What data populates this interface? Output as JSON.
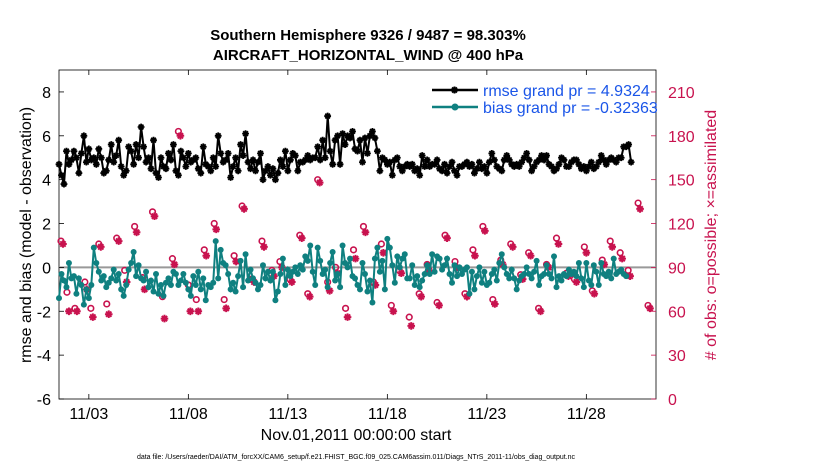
{
  "chart_data": {
    "type": "line",
    "title": "Southern Hemisphere 9326 / 9487 = 98.303%",
    "subtitle": "AIRCRAFT_HORIZONTAL_WIND @ 400 hPa",
    "xlabel": "Nov.01,2011 00:00:00 start",
    "ylabel": "rmse and bias (model - observation)",
    "ylabel_right": "# of obs: o=possible; ×=assimilated",
    "xlim": [
      1.5,
      31.5
    ],
    "ylim": [
      -6,
      9
    ],
    "ylim_right": [
      0,
      225
    ],
    "x_ticks": [
      3,
      8,
      13,
      18,
      23,
      28
    ],
    "x_tick_labels": [
      "11/03",
      "11/08",
      "11/13",
      "11/18",
      "11/23",
      "11/28"
    ],
    "y_ticks": [
      -6,
      -4,
      -2,
      0,
      2,
      4,
      6,
      8
    ],
    "y_ticks_right": [
      0,
      30,
      60,
      90,
      120,
      150,
      180,
      210
    ],
    "footnote": "data file: /Users/raeder/DAI/ATM_forcXX/CAM6_setup/f.e21.FHIST_BGC.f09_025.CAM6assim.011/Diags_NTrS_2011-11/obs_diag_output.nc",
    "series": [
      {
        "name": "rmse grand pr = 4.9324",
        "color": "#000000",
        "marker": "*",
        "axis": "left",
        "values": [
          4.7,
          4.2,
          3.8,
          5.3,
          4.7,
          4.9,
          5.3,
          5.0,
          4.3,
          5.2,
          6.0,
          4.8,
          5.4,
          4.9,
          5.0,
          4.7,
          5.4,
          5.0,
          4.3,
          4.4,
          4.9,
          5.6,
          4.8,
          5.1,
          5.8,
          4.6,
          4.2,
          4.4,
          5.5,
          5.3,
          4.7,
          5.6,
          5.0,
          6.4,
          5.5,
          4.8,
          5.0,
          4.5,
          5.8,
          4.3,
          4.1,
          5.0,
          4.6,
          4.5,
          5.2,
          4.9,
          5.6,
          4.4,
          4.2,
          5.3,
          5.0,
          4.6,
          5.2,
          4.8,
          4.9,
          5.0,
          4.5,
          4.3,
          5.5,
          4.7,
          4.6,
          4.4,
          5.0,
          4.6,
          6.0,
          5.2,
          4.8,
          4.9,
          5.2,
          4.1,
          4.6,
          5.0,
          4.4,
          5.6,
          5.1,
          6.1,
          4.8,
          4.5,
          4.9,
          4.4,
          4.8,
          5.2,
          4.0,
          4.4,
          4.6,
          4.2,
          4.5,
          4.0,
          4.3,
          4.9,
          4.6,
          5.3,
          4.4,
          4.9,
          5.2,
          5.1,
          4.4,
          4.8,
          4.8,
          4.9,
          5.1,
          4.9,
          5.0,
          5.0,
          5.5,
          4.9,
          5.8,
          5.0,
          6.9,
          5.3,
          4.7,
          5.8,
          6.0,
          4.7,
          6.1,
          5.6,
          6.0,
          5.9,
          6.2,
          5.4,
          5.3,
          5.8,
          4.8,
          5.9,
          5.2,
          6.0,
          6.2,
          5.9,
          5.3,
          4.4,
          5.0,
          4.9,
          4.7,
          4.8,
          4.2,
          4.9,
          5.0,
          4.6,
          4.4,
          4.6,
          4.7,
          4.6,
          4.7,
          4.4,
          4.5,
          4.2,
          5.1,
          4.6,
          4.9,
          4.6,
          4.7,
          4.7,
          4.9,
          4.5,
          4.4,
          4.7,
          4.3,
          4.6,
          4.8,
          4.4,
          4.2,
          4.6,
          4.6,
          4.7,
          4.8,
          4.6,
          4.7,
          4.3,
          4.5,
          4.8,
          4.5,
          4.6,
          4.3,
          4.8,
          5.2,
          4.9,
          4.6,
          4.5,
          4.4,
          4.9,
          5.1,
          4.9,
          4.7,
          4.6,
          4.7,
          4.6,
          4.8,
          5.0,
          5.2,
          4.9,
          4.4,
          4.6,
          4.8,
          4.9,
          5.1,
          4.9,
          5.1,
          4.7,
          4.6,
          4.4,
          4.5,
          4.7,
          5.0,
          4.9,
          4.6,
          4.6,
          4.8,
          4.9,
          4.9,
          4.7,
          4.5,
          4.6,
          4.4,
          4.6,
          4.8,
          4.5,
          4.6,
          4.8,
          5.1,
          4.9,
          4.7,
          4.9,
          5.0,
          4.9,
          4.8,
          5.0,
          5.0,
          5.5,
          5.5,
          5.6,
          4.8
        ],
        "x_start": 1.5,
        "x_step": 0.125
      },
      {
        "name": "bias grand pr = -0.32363",
        "color": "#0f8080",
        "marker": "o",
        "axis": "left",
        "values": [
          -1.4,
          -0.3,
          -0.6,
          -0.9,
          0.2,
          -0.5,
          -0.4,
          -1.2,
          -0.5,
          -0.8,
          -1.7,
          -1.0,
          -1.4,
          -0.8,
          0.9,
          0.2,
          -0.2,
          -0.6,
          -0.4,
          -0.9,
          -0.7,
          -0.5,
          -0.1,
          -0.6,
          -0.3,
          -1.0,
          -1.3,
          -0.8,
          -0.1,
          0.2,
          0.7,
          -0.4,
          0.1,
          -0.5,
          -0.6,
          -0.2,
          -0.9,
          -0.6,
          -1.1,
          -0.3,
          -1.2,
          -0.8,
          -1.3,
          -0.7,
          -0.5,
          -0.8,
          -0.2,
          -0.3,
          -0.8,
          -0.6,
          -0.3,
          -0.7,
          -1.0,
          -1.3,
          -0.4,
          -0.8,
          -0.2,
          -1.0,
          -0.5,
          -1.5,
          -0.8,
          -0.9,
          -0.7,
          1.2,
          -0.5,
          0.8,
          0.2,
          0.1,
          -0.3,
          -1.0,
          -0.7,
          -1.1,
          -0.4,
          0.3,
          -0.9,
          0.6,
          -0.6,
          -0.1,
          -0.5,
          -0.7,
          -1.0,
          -0.8,
          0.1,
          -0.5,
          -0.2,
          -0.6,
          -0.2,
          -1.5,
          -1.1,
          -0.3,
          0.4,
          -0.8,
          -0.1,
          -0.4,
          -0.2,
          0.0,
          -0.3,
          0.1,
          -0.1,
          0.5,
          0.3,
          1.0,
          -0.2,
          -0.8,
          0.9,
          0.3,
          -0.3,
          -0.1,
          -0.9,
          0.2,
          0.7,
          -0.6,
          -0.3,
          -0.9,
          1.0,
          0.2,
          0.0,
          0.4,
          -0.4,
          -0.5,
          -0.8,
          -1.0,
          0.2,
          -0.3,
          -1.1,
          -0.6,
          -1.6,
          0.4,
          0.9,
          -0.2,
          0.3,
          -1.0,
          1.3,
          0.9,
          0.1,
          -0.7,
          0.5,
          0.0,
          0.4,
          0.6,
          -0.5,
          -0.5,
          0.1,
          -0.8,
          -0.4,
          -0.9,
          -0.6,
          -0.3,
          0.1,
          -0.3,
          0.6,
          -0.2,
          0.5,
          0.4,
          -0.1,
          0.1,
          0.4,
          -0.3,
          -0.7,
          0.1,
          -0.4,
          0.0,
          -0.3,
          -0.1,
          0.0,
          -1.2,
          -0.2,
          -1.0,
          -0.4,
          0.0,
          -0.7,
          -0.2,
          -0.8,
          -0.7,
          -0.3,
          -0.1,
          -0.6,
          0.2,
          0.6,
          0.0,
          -0.3,
          -0.5,
          -0.1,
          -0.5,
          -1.0,
          -0.6,
          -0.4,
          -0.3,
          0.0,
          -0.3,
          -0.5,
          -0.2,
          0.3,
          -0.8,
          -0.4,
          -0.3,
          0.1,
          -0.3,
          -0.5,
          0.5,
          -0.9,
          -0.4,
          -0.6,
          -0.3,
          -0.4,
          -0.1,
          -0.3,
          -0.2,
          -0.4,
          0.2,
          -0.5,
          -0.9,
          0.2,
          -0.6,
          -0.8,
          0.1,
          -0.2,
          -0.8,
          0.2,
          -0.3,
          -0.4,
          -0.2,
          -0.5,
          0.4,
          -0.3,
          -0.2,
          -0.1,
          -0.3,
          -0.4
        ],
        "x_start": 1.5,
        "x_step": 0.125
      },
      {
        "name": "# of obs possible",
        "color": "#c8124e",
        "marker": "o",
        "axis": "right",
        "x": [
          1.6,
          1.9,
          2.3,
          2.8,
          3.1,
          3.5,
          3.9,
          4.4,
          4.8,
          5.3,
          5.7,
          6.2,
          6.7,
          7.2,
          7.5,
          8.0,
          8.4,
          8.8,
          9.3,
          9.8,
          10.3,
          10.7,
          11.2,
          11.7,
          12.2,
          12.6,
          13.1,
          13.6,
          14.0,
          14.5,
          15.0,
          15.4,
          15.9,
          16.3,
          16.8,
          17.3,
          17.7,
          18.2,
          18.6,
          19.1,
          19.6,
          20.0,
          20.5,
          20.9,
          21.4,
          21.9,
          22.3,
          22.8,
          23.3,
          23.7,
          24.2,
          24.7,
          25.1,
          25.6,
          26.0,
          26.5,
          27.0,
          27.4,
          27.9,
          28.3,
          28.8,
          29.2,
          29.7,
          30.1,
          30.6,
          31.1
        ],
        "values": [
          108,
          73,
          62,
          80,
          62,
          106,
          65,
          110,
          88,
          118,
          83,
          128,
          70,
          96,
          183,
          78,
          68,
          102,
          120,
          68,
          98,
          132,
          82,
          108,
          88,
          94,
          82,
          112,
          72,
          150,
          80,
          90,
          62,
          102,
          118,
          80,
          106,
          64,
          88,
          56,
          72,
          92,
          66,
          112,
          94,
          72,
          102,
          118,
          68,
          95,
          106,
          85,
          100,
          62,
          92,
          110,
          86,
          82,
          104,
          74,
          95,
          108,
          100,
          88,
          134,
          64
        ]
      },
      {
        "name": "# of obs assimilated",
        "color": "#c8124e",
        "marker": "*",
        "axis": "right",
        "x": [
          1.7,
          2.0,
          2.4,
          2.9,
          3.2,
          3.6,
          4.0,
          4.5,
          4.9,
          5.4,
          5.8,
          6.3,
          6.8,
          7.3,
          7.6,
          8.1,
          8.5,
          8.9,
          9.4,
          9.9,
          10.4,
          10.8,
          11.3,
          11.8,
          12.3,
          12.7,
          13.2,
          13.7,
          14.1,
          14.6,
          15.1,
          15.5,
          16.0,
          16.4,
          16.9,
          17.4,
          17.8,
          18.3,
          18.7,
          19.2,
          19.7,
          20.1,
          20.6,
          21.0,
          21.5,
          22.0,
          22.4,
          22.9,
          23.4,
          23.8,
          24.3,
          24.8,
          25.2,
          25.7,
          26.1,
          26.6,
          27.1,
          27.5,
          28.0,
          28.4,
          28.9,
          29.3,
          29.8,
          30.2,
          30.7,
          31.2
        ],
        "values": [
          106,
          60,
          60,
          75,
          56,
          104,
          58,
          108,
          80,
          114,
          75,
          125,
          55,
          92,
          180,
          60,
          60,
          98,
          116,
          62,
          94,
          130,
          80,
          104,
          84,
          90,
          80,
          110,
          70,
          148,
          74,
          86,
          56,
          96,
          114,
          78,
          100,
          60,
          86,
          50,
          70,
          88,
          64,
          110,
          90,
          70,
          98,
          115,
          65,
          92,
          104,
          82,
          98,
          60,
          90,
          106,
          84,
          80,
          100,
          72,
          92,
          104,
          96,
          84,
          130,
          62
        ]
      }
    ]
  }
}
